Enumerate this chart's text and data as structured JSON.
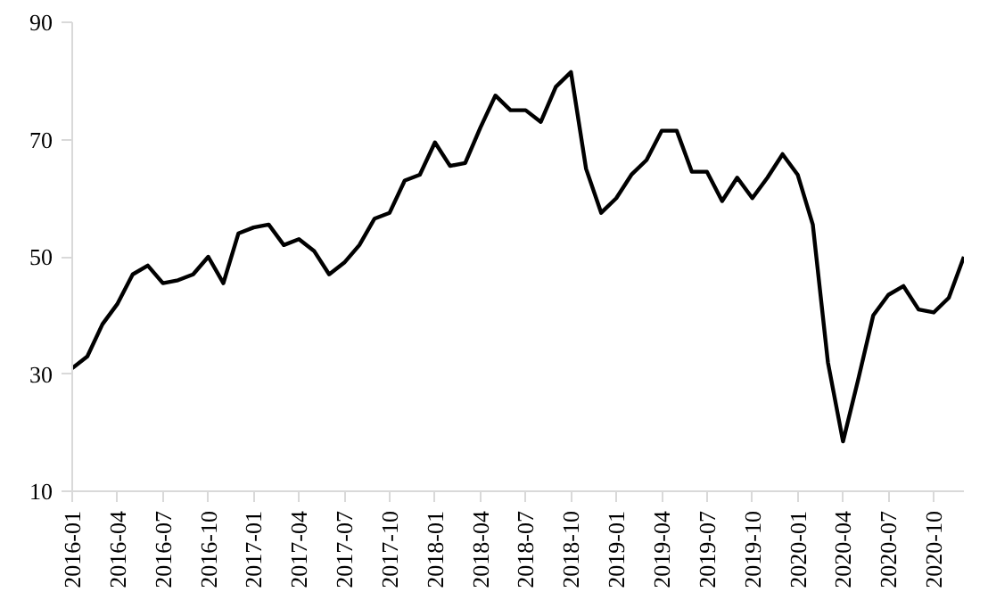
{
  "chart_data": {
    "type": "line",
    "x": [
      "2016-01",
      "2016-02",
      "2016-03",
      "2016-04",
      "2016-05",
      "2016-06",
      "2016-07",
      "2016-08",
      "2016-09",
      "2016-10",
      "2016-11",
      "2016-12",
      "2017-01",
      "2017-02",
      "2017-03",
      "2017-04",
      "2017-05",
      "2017-06",
      "2017-07",
      "2017-08",
      "2017-09",
      "2017-10",
      "2017-11",
      "2017-12",
      "2018-01",
      "2018-02",
      "2018-03",
      "2018-04",
      "2018-05",
      "2018-06",
      "2018-07",
      "2018-08",
      "2018-09",
      "2018-10",
      "2018-11",
      "2018-12",
      "2019-01",
      "2019-02",
      "2019-03",
      "2019-04",
      "2019-05",
      "2019-06",
      "2019-07",
      "2019-08",
      "2019-09",
      "2019-10",
      "2019-11",
      "2019-12",
      "2020-01",
      "2020-02",
      "2020-03",
      "2020-04",
      "2020-05",
      "2020-06",
      "2020-07",
      "2020-08",
      "2020-09",
      "2020-10",
      "2020-11",
      "2020-12"
    ],
    "series": [
      {
        "color": "#000000",
        "values": [
          31,
          33,
          38.5,
          42,
          47,
          48.5,
          45.5,
          46,
          47,
          50,
          45.5,
          54,
          55,
          55.5,
          52,
          53,
          51,
          47,
          49,
          52,
          56.5,
          57.5,
          63,
          64,
          69.5,
          65.5,
          66,
          72,
          77.5,
          75,
          75,
          73,
          79,
          81.5,
          65,
          57.5,
          60,
          64,
          66.5,
          71.5,
          71.5,
          64.5,
          64.5,
          59.5,
          63.5,
          60,
          63.5,
          67.5,
          64,
          55.5,
          32,
          18.5,
          29,
          40,
          43.5,
          45,
          41,
          40.5,
          43,
          50
        ]
      }
    ],
    "xlim": [
      "2016-01",
      "2020-12"
    ],
    "xticks": [
      "2016-01",
      "2016-04",
      "2016-07",
      "2016-10",
      "2017-01",
      "2017-04",
      "2017-07",
      "2017-10",
      "2018-01",
      "2018-04",
      "2018-07",
      "2018-10",
      "2019-01",
      "2019-04",
      "2019-07",
      "2019-10",
      "2020-01",
      "2020-04",
      "2020-07",
      "2020-10"
    ],
    "ylim": [
      10,
      90
    ],
    "yticks": [
      10,
      30,
      50,
      70,
      90
    ],
    "grid": false,
    "marker": "none",
    "line_style": "solid"
  }
}
